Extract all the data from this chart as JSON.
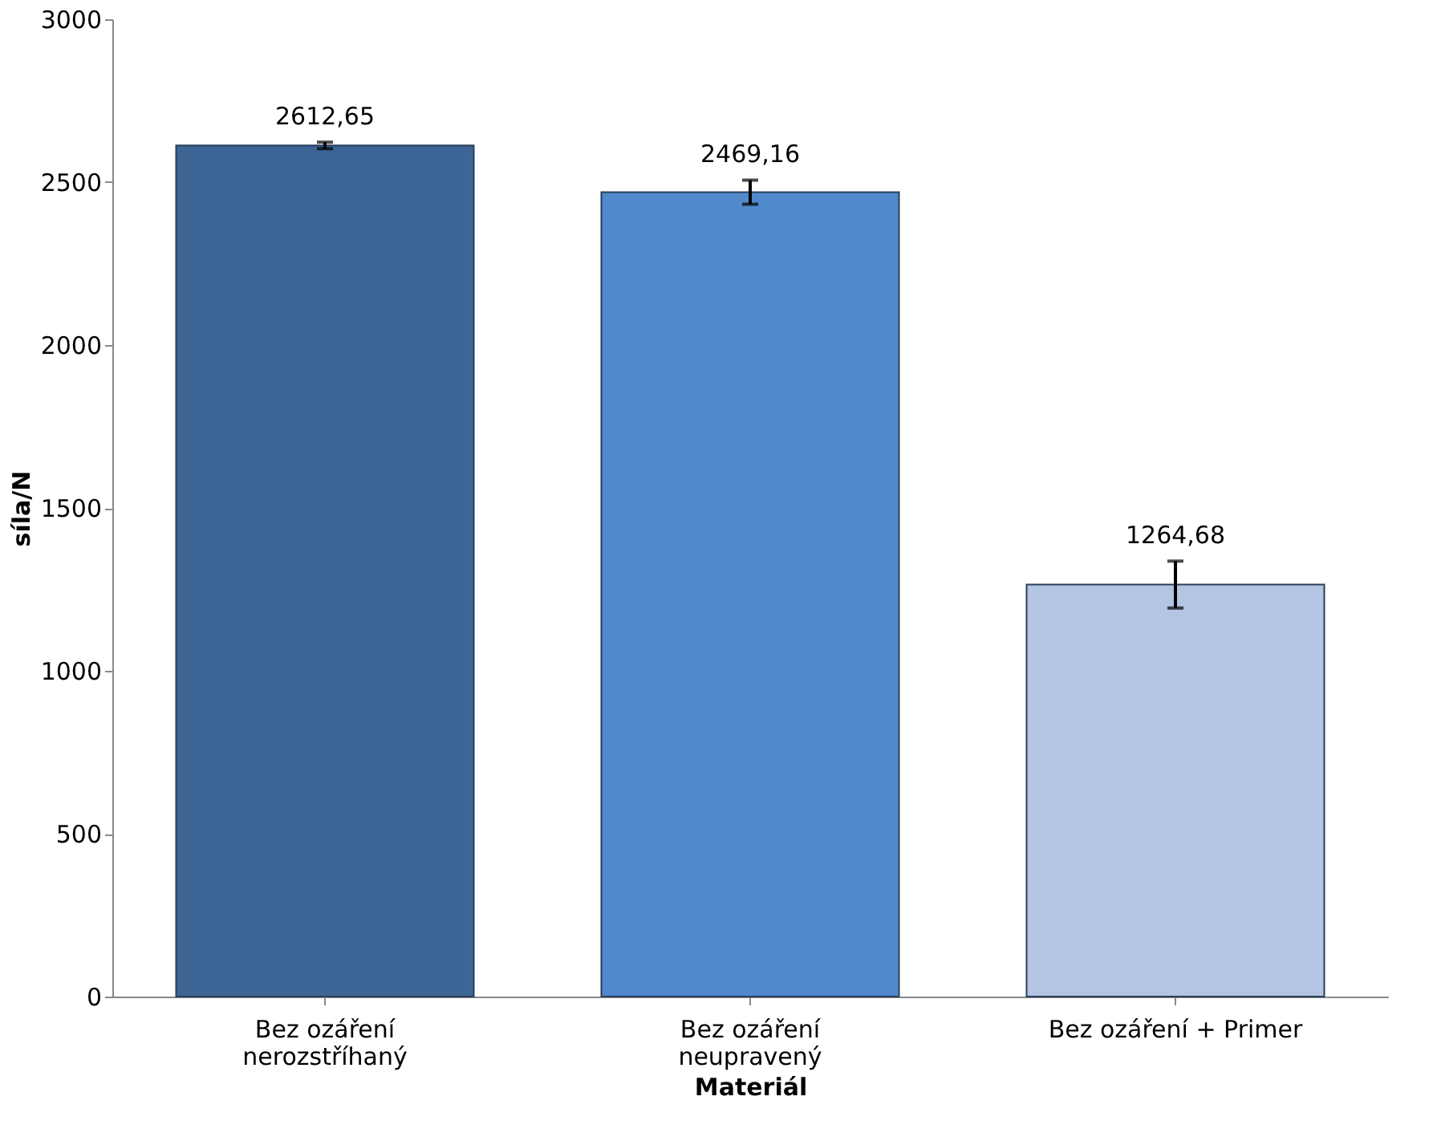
{
  "chart_data": {
    "type": "bar",
    "xlabel": "Materiál",
    "ylabel": "síla/N",
    "categories": [
      "Bez ozáření\nnerozstříhaný",
      "Bez ozáření\nneupravený",
      "Bez ozáření + Primer"
    ],
    "values": [
      2612.65,
      2469.16,
      1264.68
    ],
    "colors": [
      "#3d6696",
      "#5089cc",
      "#b3c5e3"
    ],
    "errors": [
      10,
      37,
      72
    ],
    "value_labels": [
      "2612,65",
      "2469,16",
      "1264,68"
    ],
    "ylim": [
      0,
      3000
    ],
    "yticks": [
      0,
      500,
      1000,
      1500,
      2000,
      2500,
      3000
    ],
    "grid": false
  }
}
